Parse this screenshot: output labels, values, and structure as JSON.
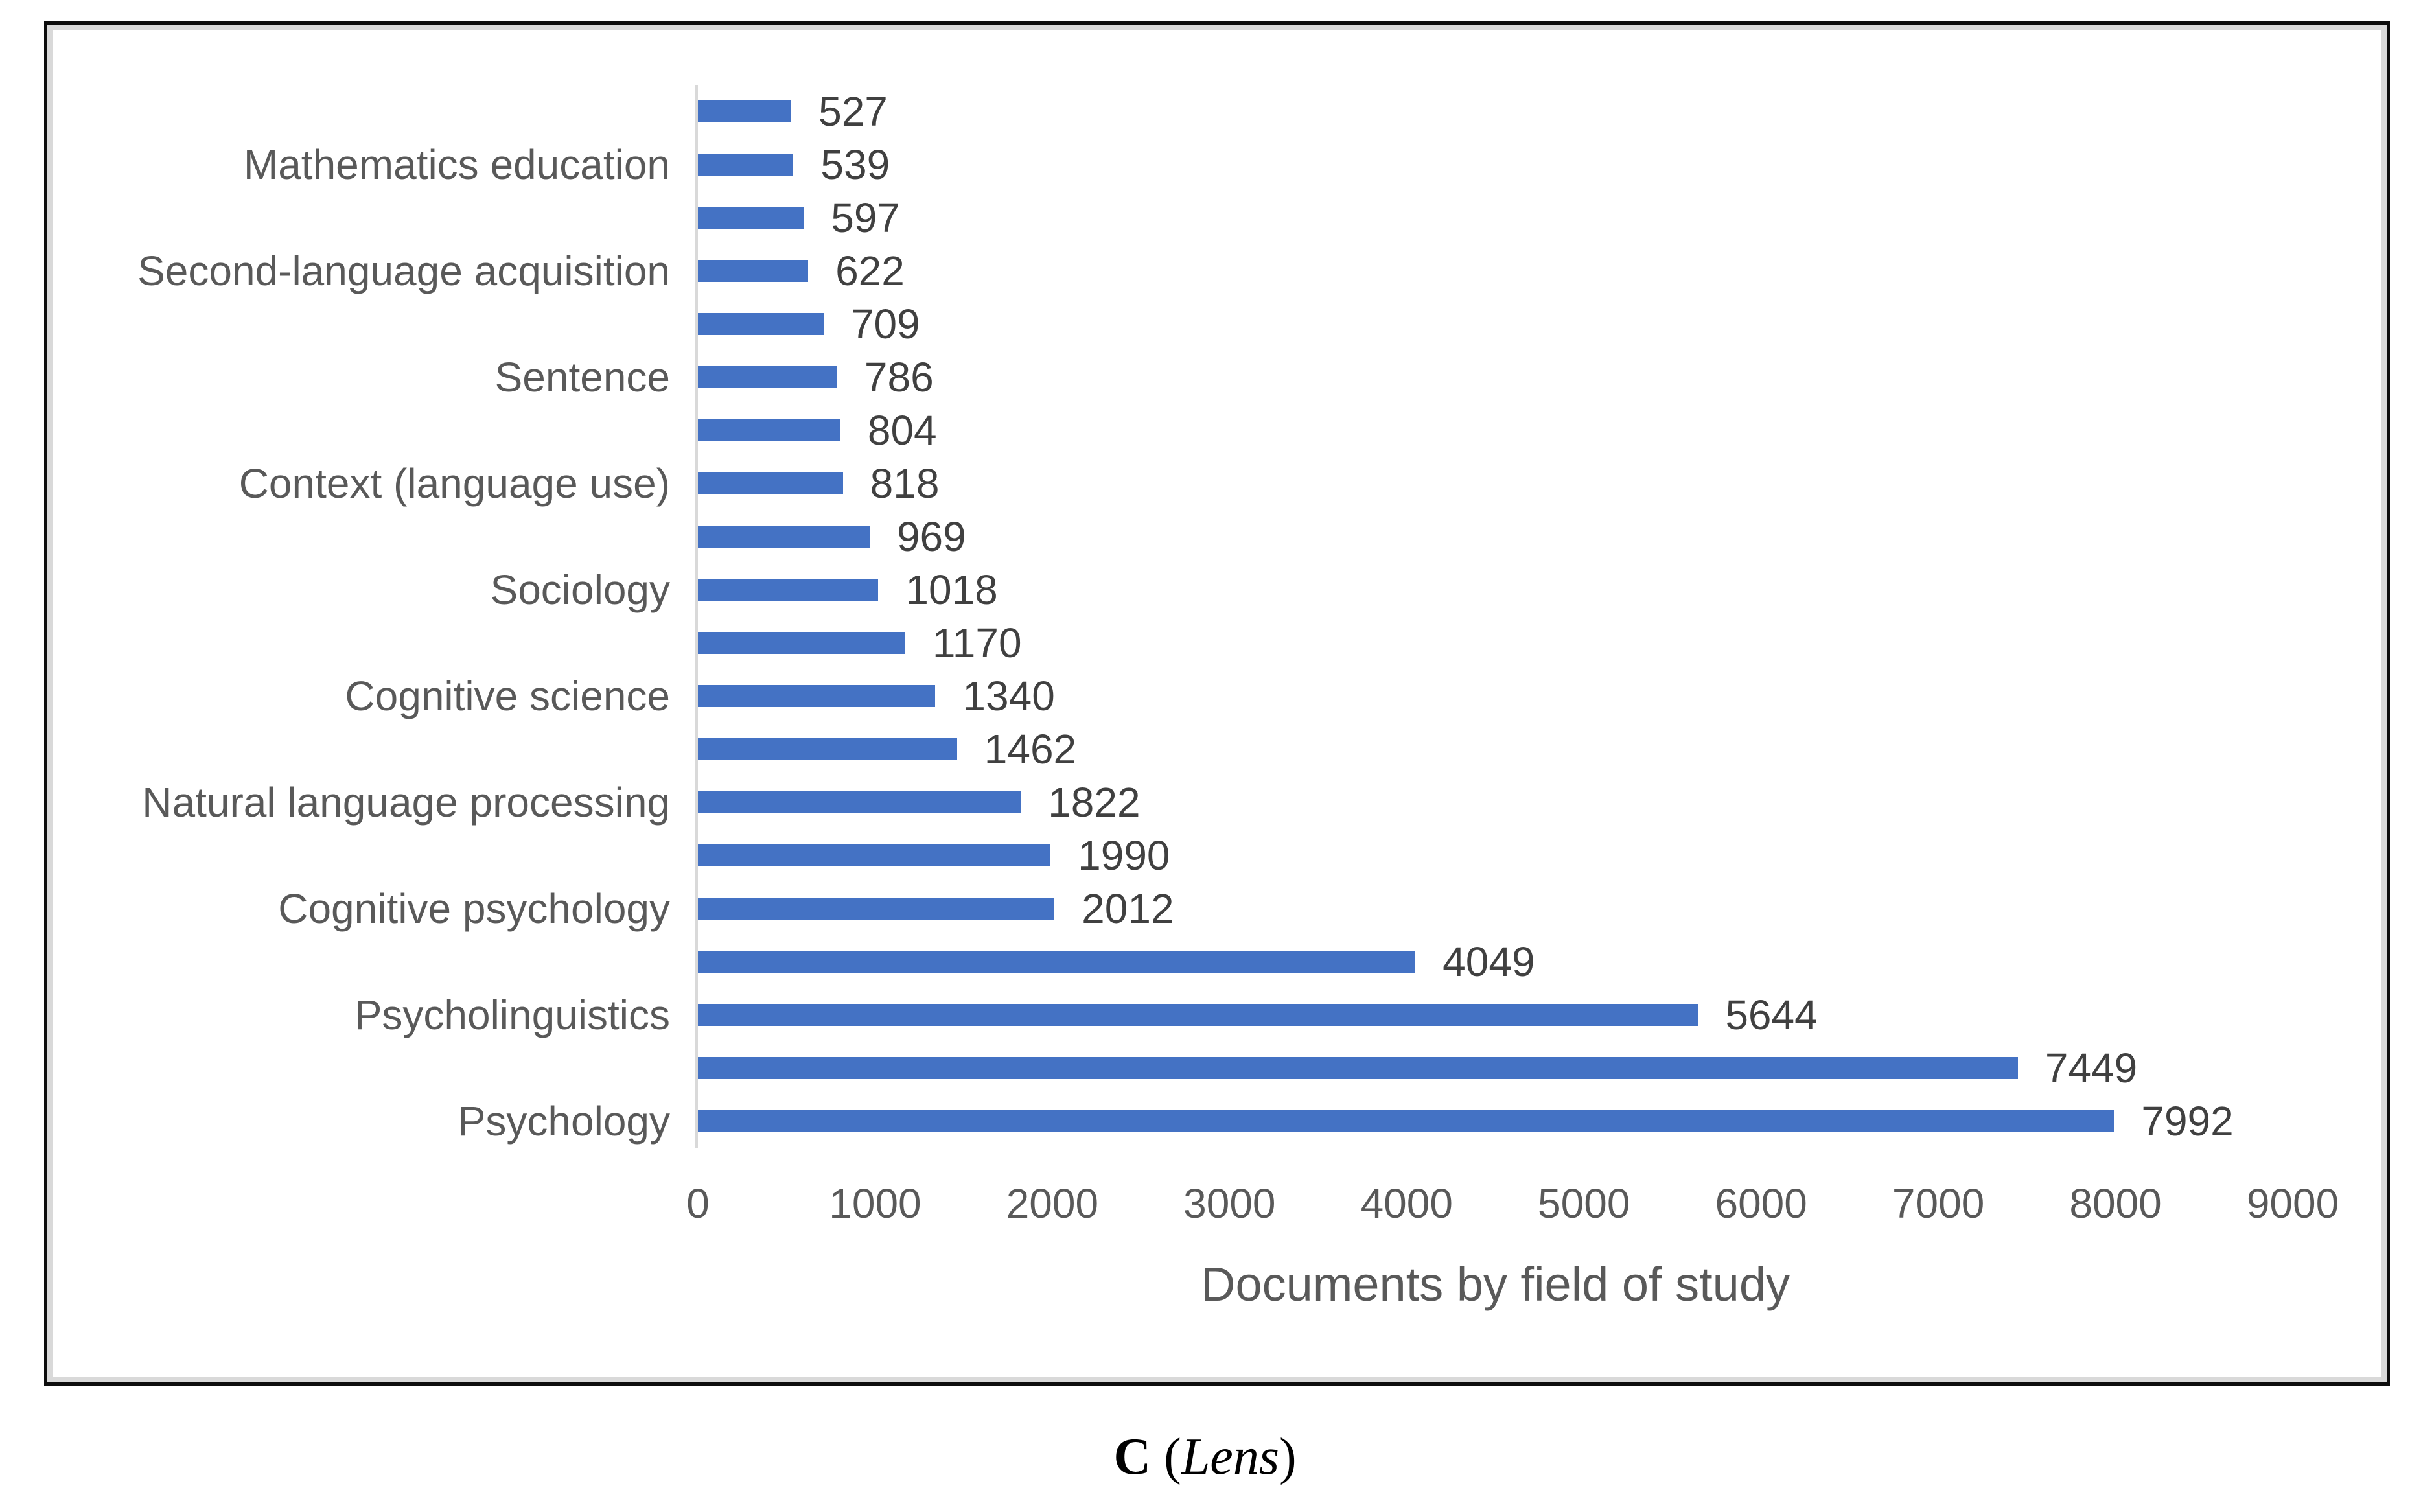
{
  "colors": {
    "bar": "#4472C4",
    "category_label": "#595959",
    "value_label": "#404040",
    "axis_line": "#D9D9D9",
    "frame_border": "#0D0D0D",
    "inner_border": "#D9D9D9"
  },
  "chart_data": {
    "type": "bar",
    "orientation": "horizontal",
    "title": "",
    "xlabel": "Documents by field of study",
    "ylabel": "",
    "xlim": [
      0,
      9000
    ],
    "xticks": [
      0,
      1000,
      2000,
      3000,
      4000,
      5000,
      6000,
      7000,
      8000,
      9000
    ],
    "grid": "off",
    "legend": "none",
    "value_labels_shown": true,
    "bars": [
      {
        "label": "",
        "value": 527
      },
      {
        "label": "Mathematics education",
        "value": 539
      },
      {
        "label": "",
        "value": 597
      },
      {
        "label": "Second-language acquisition",
        "value": 622
      },
      {
        "label": "",
        "value": 709
      },
      {
        "label": "Sentence",
        "value": 786
      },
      {
        "label": "",
        "value": 804
      },
      {
        "label": "Context (language use)",
        "value": 818
      },
      {
        "label": "",
        "value": 969
      },
      {
        "label": "Sociology",
        "value": 1018
      },
      {
        "label": "",
        "value": 1170
      },
      {
        "label": "Cognitive science",
        "value": 1340
      },
      {
        "label": "",
        "value": 1462
      },
      {
        "label": "Natural language processing",
        "value": 1822
      },
      {
        "label": "",
        "value": 1990
      },
      {
        "label": "Cognitive psychology",
        "value": 2012
      },
      {
        "label": "",
        "value": 4049
      },
      {
        "label": "Psycholinguistics",
        "value": 5644
      },
      {
        "label": "",
        "value": 7449
      },
      {
        "label": "Psychology",
        "value": 7992
      }
    ]
  },
  "caption": {
    "bold": "C",
    "open": " (",
    "italic": "Lens",
    "close": ")"
  }
}
